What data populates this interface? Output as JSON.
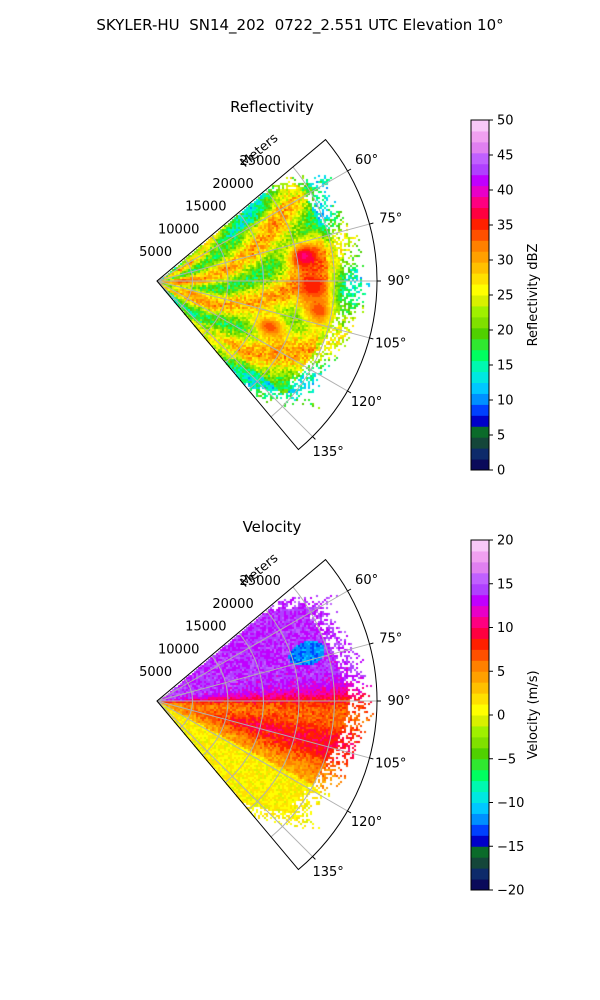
{
  "figure_title": "SKYLER-HU  SN14_202  0722_2.551 UTC Elevation 10°",
  "chart_data": [
    {
      "type": "heatmap",
      "title": "Reflectivity",
      "radial_label": "Meters",
      "radial_ticks": [
        5000,
        10000,
        15000,
        20000,
        25000
      ],
      "range_max": 31000,
      "azimuth_ticks": [
        60,
        75,
        90,
        105,
        120,
        135
      ],
      "azimuth_tick_labels": [
        "60°",
        "75°",
        "90°",
        "105°",
        "120°",
        "135°"
      ],
      "azimuth_range": [
        50,
        140
      ],
      "grid": true,
      "colorbar": {
        "label": "Reflectivity dBZ",
        "min": 0,
        "max": 50,
        "ticks": [
          0,
          5,
          10,
          15,
          20,
          25,
          30,
          35,
          40,
          45,
          50
        ],
        "colors": [
          "#0a0a5a",
          "#0d2a6a",
          "#14463a",
          "#0b6b2a",
          "#0000c8",
          "#0040ff",
          "#0090ff",
          "#00c8ff",
          "#00e8e0",
          "#00f8b0",
          "#00ff60",
          "#30e830",
          "#50d000",
          "#80e000",
          "#a0f000",
          "#d8f000",
          "#ffff00",
          "#ffe000",
          "#ffc000",
          "#ffa000",
          "#ff8000",
          "#ff5000",
          "#ff2000",
          "#ff0040",
          "#ff0080",
          "#e800c8",
          "#c000ff",
          "#b040ff",
          "#c060ff",
          "#e080f0",
          "#f0a0f0",
          "#f8c8f8"
        ]
      },
      "value_distribution": {
        "typical_low": 18,
        "typical_high": 30,
        "core_max": 38
      },
      "cores": [
        {
          "azimuth": 80,
          "range": 21000,
          "value": 38
        },
        {
          "azimuth": 92,
          "range": 22000,
          "value": 36
        },
        {
          "azimuth": 100,
          "range": 23000,
          "value": 34
        },
        {
          "azimuth": 112,
          "range": 17000,
          "value": 34
        },
        {
          "azimuth": 86,
          "range": 3500,
          "value": 33
        },
        {
          "azimuth": 108,
          "range": 5000,
          "value": 32
        }
      ]
    },
    {
      "type": "heatmap",
      "title": "Velocity",
      "radial_label": "Meters",
      "radial_ticks": [
        5000,
        10000,
        15000,
        20000,
        25000
      ],
      "range_max": 31000,
      "azimuth_ticks": [
        60,
        75,
        90,
        105,
        120,
        135
      ],
      "azimuth_tick_labels": [
        "60°",
        "75°",
        "90°",
        "105°",
        "120°",
        "135°"
      ],
      "azimuth_range": [
        50,
        140
      ],
      "grid": true,
      "colorbar": {
        "label": "Velocity (m/s)",
        "min": -20,
        "max": 20,
        "ticks": [
          -20,
          -15,
          -10,
          -5,
          0,
          5,
          10,
          15,
          20
        ],
        "colors": [
          "#0a0a5a",
          "#0d2a6a",
          "#14463a",
          "#0b6b2a",
          "#0000c8",
          "#0040ff",
          "#0090ff",
          "#00c8ff",
          "#00e8e0",
          "#00f8b0",
          "#00ff60",
          "#30e830",
          "#50d000",
          "#80e000",
          "#a0f000",
          "#d8f000",
          "#ffff00",
          "#ffe000",
          "#ffc000",
          "#ffa000",
          "#ff8000",
          "#ff5000",
          "#ff2000",
          "#ff0040",
          "#ff0080",
          "#e800c8",
          "#c000ff",
          "#b040ff",
          "#c060ff",
          "#e080f0",
          "#f0a0f0",
          "#f8c8f8"
        ]
      },
      "value_distribution": {
        "north_sector": 14,
        "south_sector": 4,
        "boundary": 9,
        "inbound_core": -12
      },
      "cores": [
        {
          "azimuth": 72,
          "range": 22000,
          "value": -12
        }
      ]
    }
  ]
}
